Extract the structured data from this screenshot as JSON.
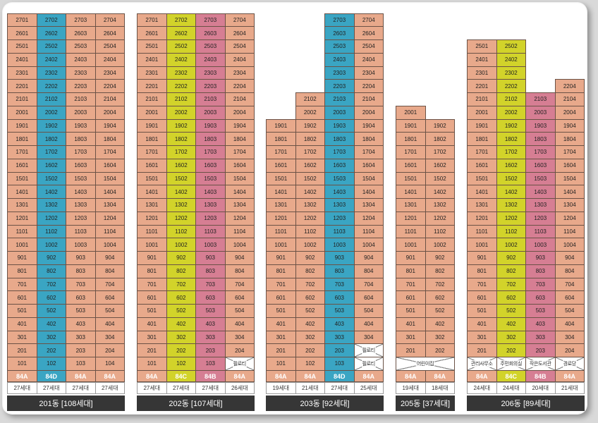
{
  "colors": {
    "salmon": "#e8a98b",
    "blue": "#3aa5c3",
    "yellow": "#d2d32a",
    "pink": "#d67e93",
    "bar": "#363636"
  },
  "buildings": [
    {
      "label": "201동 [108세대]",
      "columns": [
        {
          "unit": "01",
          "top": 27,
          "color": "salmon",
          "type": "84A",
          "households": "27세대",
          "facilities": []
        },
        {
          "unit": "02",
          "top": 27,
          "color": "blue",
          "type": "84D",
          "households": "27세대",
          "facilities": []
        },
        {
          "unit": "03",
          "top": 27,
          "color": "salmon",
          "type": "84A",
          "households": "27세대",
          "facilities": []
        },
        {
          "unit": "04",
          "top": 27,
          "color": "salmon",
          "type": "84A",
          "households": "27세대",
          "facilities": []
        }
      ]
    },
    {
      "label": "202동 [107세대]",
      "columns": [
        {
          "unit": "01",
          "top": 27,
          "color": "salmon",
          "type": "84A",
          "households": "27세대",
          "facilities": []
        },
        {
          "unit": "02",
          "top": 27,
          "color": "yellow",
          "type": "84C",
          "households": "27세대",
          "facilities": []
        },
        {
          "unit": "03",
          "top": 27,
          "color": "pink",
          "type": "84B",
          "households": "27세대",
          "facilities": []
        },
        {
          "unit": "04",
          "top": 27,
          "color": "salmon",
          "type": "84A",
          "households": "26세대",
          "facilities": [
            {
              "text": "필로티",
              "cross": true
            }
          ]
        }
      ]
    },
    {
      "label": "203동 [92세대]",
      "columns": [
        {
          "unit": "01",
          "top": 19,
          "color": "salmon",
          "type": "84A",
          "households": "19세대",
          "facilities": []
        },
        {
          "unit": "02",
          "top": 21,
          "color": "salmon",
          "type": "84A",
          "households": "21세대",
          "facilities": []
        },
        {
          "unit": "03",
          "top": 27,
          "color": "blue",
          "type": "84D",
          "households": "27세대",
          "facilities": []
        },
        {
          "unit": "04",
          "top": 27,
          "color": "salmon",
          "type": "84A",
          "households": "25세대",
          "facilities": [
            {
              "text": "필로티",
              "cross": true
            },
            {
              "text": "필로티",
              "cross": true
            }
          ]
        }
      ]
    },
    {
      "label": "205동 [37세대]",
      "columns": [
        {
          "unit": "01",
          "top": 20,
          "color": "salmon",
          "type": "84A",
          "households": "19세대",
          "facilities": []
        },
        {
          "unit": "02",
          "top": 19,
          "color": "salmon",
          "type": "84A",
          "households": "18세대",
          "facilities": []
        }
      ],
      "span_facility": {
        "text": "어린이집",
        "cross": true
      }
    },
    {
      "label": "206동 [89세대]",
      "columns": [
        {
          "unit": "01",
          "top": 25,
          "color": "salmon",
          "type": "84A",
          "households": "24세대",
          "facilities": [
            {
              "text": "관리사무소",
              "cross": true
            }
          ]
        },
        {
          "unit": "02",
          "top": 25,
          "color": "yellow",
          "type": "84C",
          "households": "24세대",
          "facilities": [
            {
              "text": "주민회의실",
              "cross": true
            }
          ]
        },
        {
          "unit": "03",
          "top": 21,
          "color": "pink",
          "type": "84B",
          "households": "20세대",
          "facilities": [
            {
              "text": "작은도서관",
              "cross": true
            }
          ]
        },
        {
          "unit": "04",
          "top": 22,
          "color": "salmon",
          "type": "84A",
          "households": "21세대",
          "facilities": [
            {
              "text": "경로당",
              "cross": true
            }
          ]
        }
      ]
    }
  ]
}
